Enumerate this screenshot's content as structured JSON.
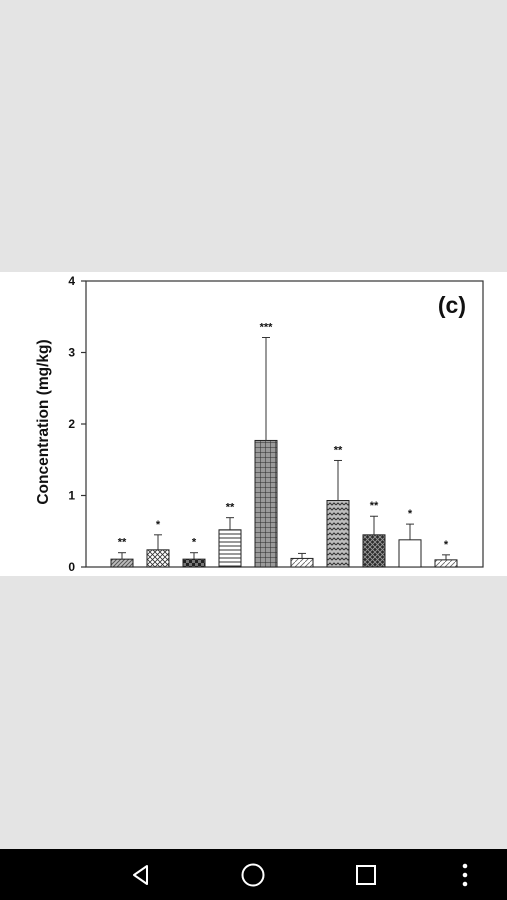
{
  "chart_data": {
    "type": "bar",
    "panel_label": "(c)",
    "title": "",
    "xlabel": "",
    "ylabel": "Concentration (mg/kg)",
    "ylim": [
      0,
      4
    ],
    "yticks": [
      "0",
      "1",
      "2",
      "3",
      "4"
    ],
    "grid": false,
    "legend": "none",
    "series": [
      {
        "values": [
          0.11,
          0.24,
          0.11,
          0.52,
          1.77,
          0.12,
          0.93,
          0.45,
          0.38,
          0.1
        ],
        "errors": [
          0.09,
          0.21,
          0.09,
          0.17,
          1.44,
          0.07,
          0.56,
          0.26,
          0.22,
          0.07
        ],
        "significance": [
          "**",
          "*",
          "*",
          "**",
          "***",
          "",
          "**",
          "**",
          "*",
          "*"
        ],
        "fill_patterns": [
          "diagonal-hatch",
          "cross-hatch",
          "dark-checker",
          "horizontal-lines",
          "grid",
          "light-diagonal",
          "zigzag",
          "dark-crosshatch",
          "blank",
          "light-diagonal"
        ]
      }
    ]
  },
  "colors": {
    "viewer_background": "#e4e4e4",
    "chart_background": "#ffffff",
    "ink": "#111111",
    "nav_bar": "#000000",
    "nav_icon": "#ffffff"
  },
  "nav": {
    "buttons": [
      "back-icon",
      "home-icon",
      "recents-icon",
      "more-options-icon"
    ]
  }
}
